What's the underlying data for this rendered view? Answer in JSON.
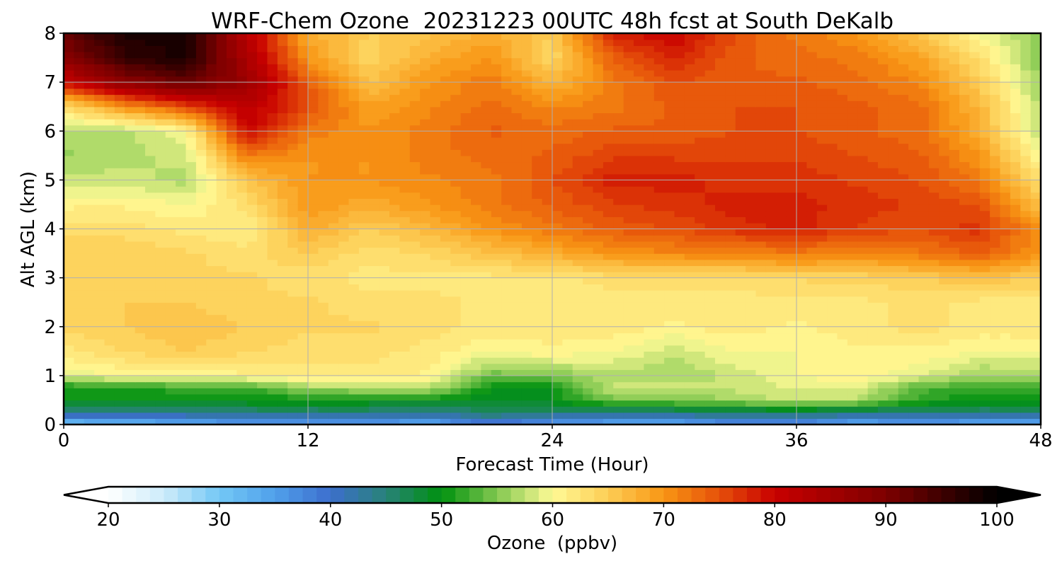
{
  "chart_data": {
    "type": "heatmap",
    "title": "WRF-Chem Ozone  20231223 00UTC 48h fcst at South DeKalb",
    "xlabel": "Forecast Time (Hour)",
    "ylabel": "Alt AGL (km)",
    "xlim": [
      0,
      48
    ],
    "ylim": [
      0,
      8
    ],
    "xticks": [
      0,
      12,
      24,
      36,
      48
    ],
    "yticks": [
      0,
      1,
      2,
      3,
      4,
      5,
      6,
      7,
      8
    ],
    "grid": true,
    "x": [
      0,
      3,
      6,
      9,
      12,
      15,
      18,
      21,
      24,
      27,
      30,
      33,
      36,
      39,
      42,
      45,
      48
    ],
    "y": [
      0,
      0.25,
      0.5,
      0.75,
      1,
      1.5,
      2,
      2.5,
      3,
      3.5,
      4,
      4.5,
      5,
      5.5,
      6,
      6.5,
      7,
      7.5,
      8
    ],
    "z": [
      [
        30,
        31,
        33,
        34,
        34,
        34,
        33,
        38,
        35,
        33,
        33,
        36,
        36,
        33,
        34,
        33,
        33
      ],
      [
        44,
        44,
        44,
        45,
        45,
        45,
        44,
        46,
        45,
        45,
        45,
        46,
        46,
        45,
        45,
        45,
        45
      ],
      [
        50,
        50,
        50,
        50,
        50,
        50,
        50,
        49,
        50,
        54,
        55,
        56,
        58,
        57,
        52,
        50,
        50
      ],
      [
        50,
        51,
        52,
        52,
        56,
        57,
        57,
        50,
        50,
        58,
        58,
        58,
        59,
        59,
        53,
        52,
        52
      ],
      [
        59,
        60,
        60,
        61,
        62,
        62,
        61,
        54,
        55,
        57,
        56,
        58,
        60,
        61,
        59,
        56,
        56
      ],
      [
        62,
        64,
        65,
        64,
        63,
        63,
        62,
        60,
        61,
        60,
        58,
        60,
        60,
        61,
        61,
        60,
        60
      ],
      [
        64,
        65,
        66,
        65,
        64,
        64,
        63,
        62,
        62,
        62,
        61,
        62,
        61,
        62,
        63,
        62,
        62
      ],
      [
        64,
        65,
        65,
        64,
        64,
        63,
        63,
        62,
        62,
        62,
        62,
        62,
        62,
        62,
        63,
        62,
        62
      ],
      [
        64,
        64,
        64,
        64,
        63,
        62,
        62,
        62,
        62,
        63,
        63,
        63,
        64,
        64,
        65,
        66,
        65
      ],
      [
        65,
        65,
        64,
        63,
        65,
        63,
        64,
        66,
        68,
        70,
        71,
        71,
        72,
        71,
        72,
        74,
        70
      ],
      [
        63,
        63,
        62,
        61,
        68,
        65,
        67,
        70,
        72,
        74,
        75,
        77,
        78,
        76,
        75,
        77,
        70
      ],
      [
        61,
        61,
        60,
        63,
        70,
        68,
        70,
        72,
        74,
        76,
        77,
        78,
        78,
        77,
        76,
        75,
        66
      ],
      [
        58,
        58,
        57,
        66,
        70,
        70,
        71,
        72,
        75,
        78,
        78,
        77,
        77,
        76,
        75,
        72,
        63
      ],
      [
        56,
        57,
        58,
        72,
        70,
        70,
        72,
        73,
        74,
        76,
        76,
        76,
        76,
        75,
        74,
        70,
        60
      ],
      [
        57,
        57,
        60,
        80,
        72,
        70,
        72,
        74,
        73,
        74,
        74,
        75,
        75,
        74,
        73,
        68,
        57
      ],
      [
        63,
        70,
        75,
        82,
        75,
        69,
        71,
        73,
        71,
        72,
        74,
        75,
        75,
        74,
        73,
        67,
        57
      ],
      [
        80,
        88,
        92,
        86,
        74,
        66,
        70,
        72,
        67,
        72,
        75,
        74,
        74,
        73,
        71,
        65,
        56
      ],
      [
        88,
        96,
        98,
        84,
        70,
        64,
        68,
        70,
        64,
        74,
        78,
        74,
        73,
        72,
        69,
        63,
        55
      ],
      [
        92,
        98,
        98,
        82,
        68,
        65,
        66,
        68,
        65,
        78,
        80,
        75,
        72,
        70,
        66,
        60,
        55
      ]
    ],
    "colorbar": {
      "label": "Ozone  (ppbv)",
      "min": 20,
      "max": 100,
      "ticks": [
        20,
        30,
        40,
        50,
        60,
        70,
        80,
        90,
        100
      ],
      "extend": "both"
    }
  }
}
